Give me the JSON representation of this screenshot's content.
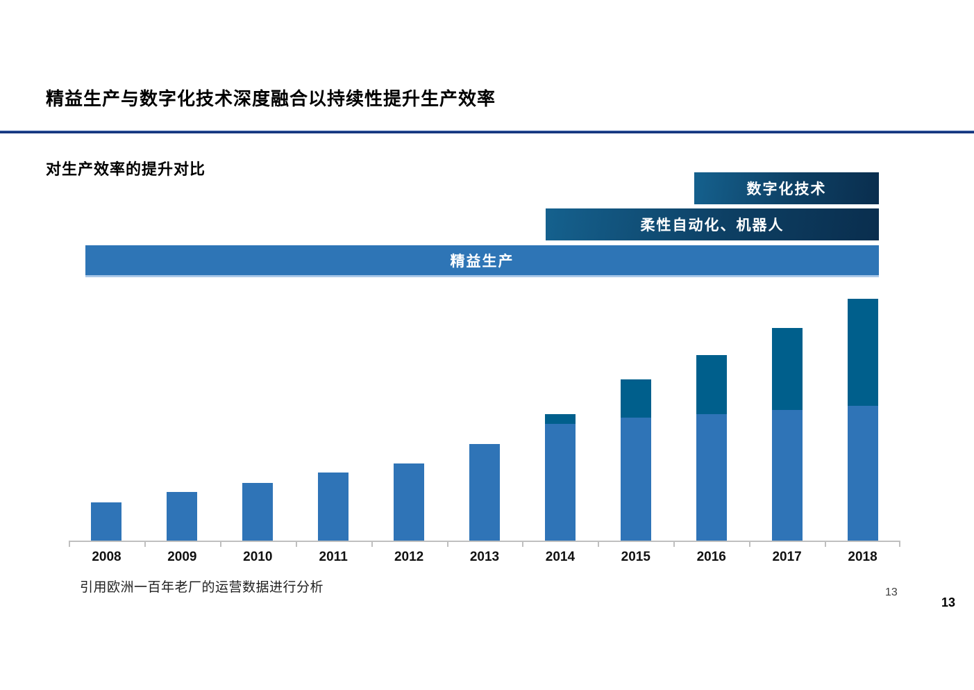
{
  "slide": {
    "title": "精益生产与数字化技术深度融合以持续性提升生产效率",
    "subtitle": "对生产效率的提升对比",
    "footnote": "引用欧洲一百年老厂的运营数据进行分析",
    "page_number": "13",
    "page_number_bold": "13"
  },
  "banners": [
    {
      "id": "digital",
      "label": "数字化技术"
    },
    {
      "id": "flexible-automation",
      "label": "柔性自动化、机器人"
    },
    {
      "id": "lean",
      "label": "精益生产"
    }
  ],
  "colors": {
    "title_rule": "#16377e",
    "banner_gradient_start": "#15618e",
    "banner_gradient_end": "#0a2e4e",
    "lean_banner_blue": "#2e75b6",
    "bar_lean_blue": "#2f74b7",
    "bar_digital_teal": "#005f8c",
    "axis_gray": "#bfbfbf"
  },
  "chart_data": {
    "type": "bar",
    "stacked": true,
    "title": "对生产效率的提升对比",
    "xlabel": "",
    "ylabel": "",
    "value_axis_visible": false,
    "units": "relative efficiency (no numeric axis shown in chart)",
    "grid": false,
    "legend_position": "banners above chart (数字化技术 / 柔性自动化、机器人 / 精益生产)",
    "categories": [
      "2008",
      "2009",
      "2010",
      "2011",
      "2012",
      "2013",
      "2014",
      "2015",
      "2016",
      "2017",
      "2018"
    ],
    "series": [
      {
        "name": "精益生产",
        "color": "#2f74b7",
        "values": [
          55,
          70,
          83,
          98,
          111,
          139,
          168,
          177,
          182,
          188,
          194
        ]
      },
      {
        "name": "柔性自动化、机器人 / 数字化技术",
        "color": "#005f8c",
        "values": [
          0,
          0,
          0,
          0,
          0,
          0,
          14,
          55,
          85,
          118,
          154
        ]
      }
    ]
  }
}
